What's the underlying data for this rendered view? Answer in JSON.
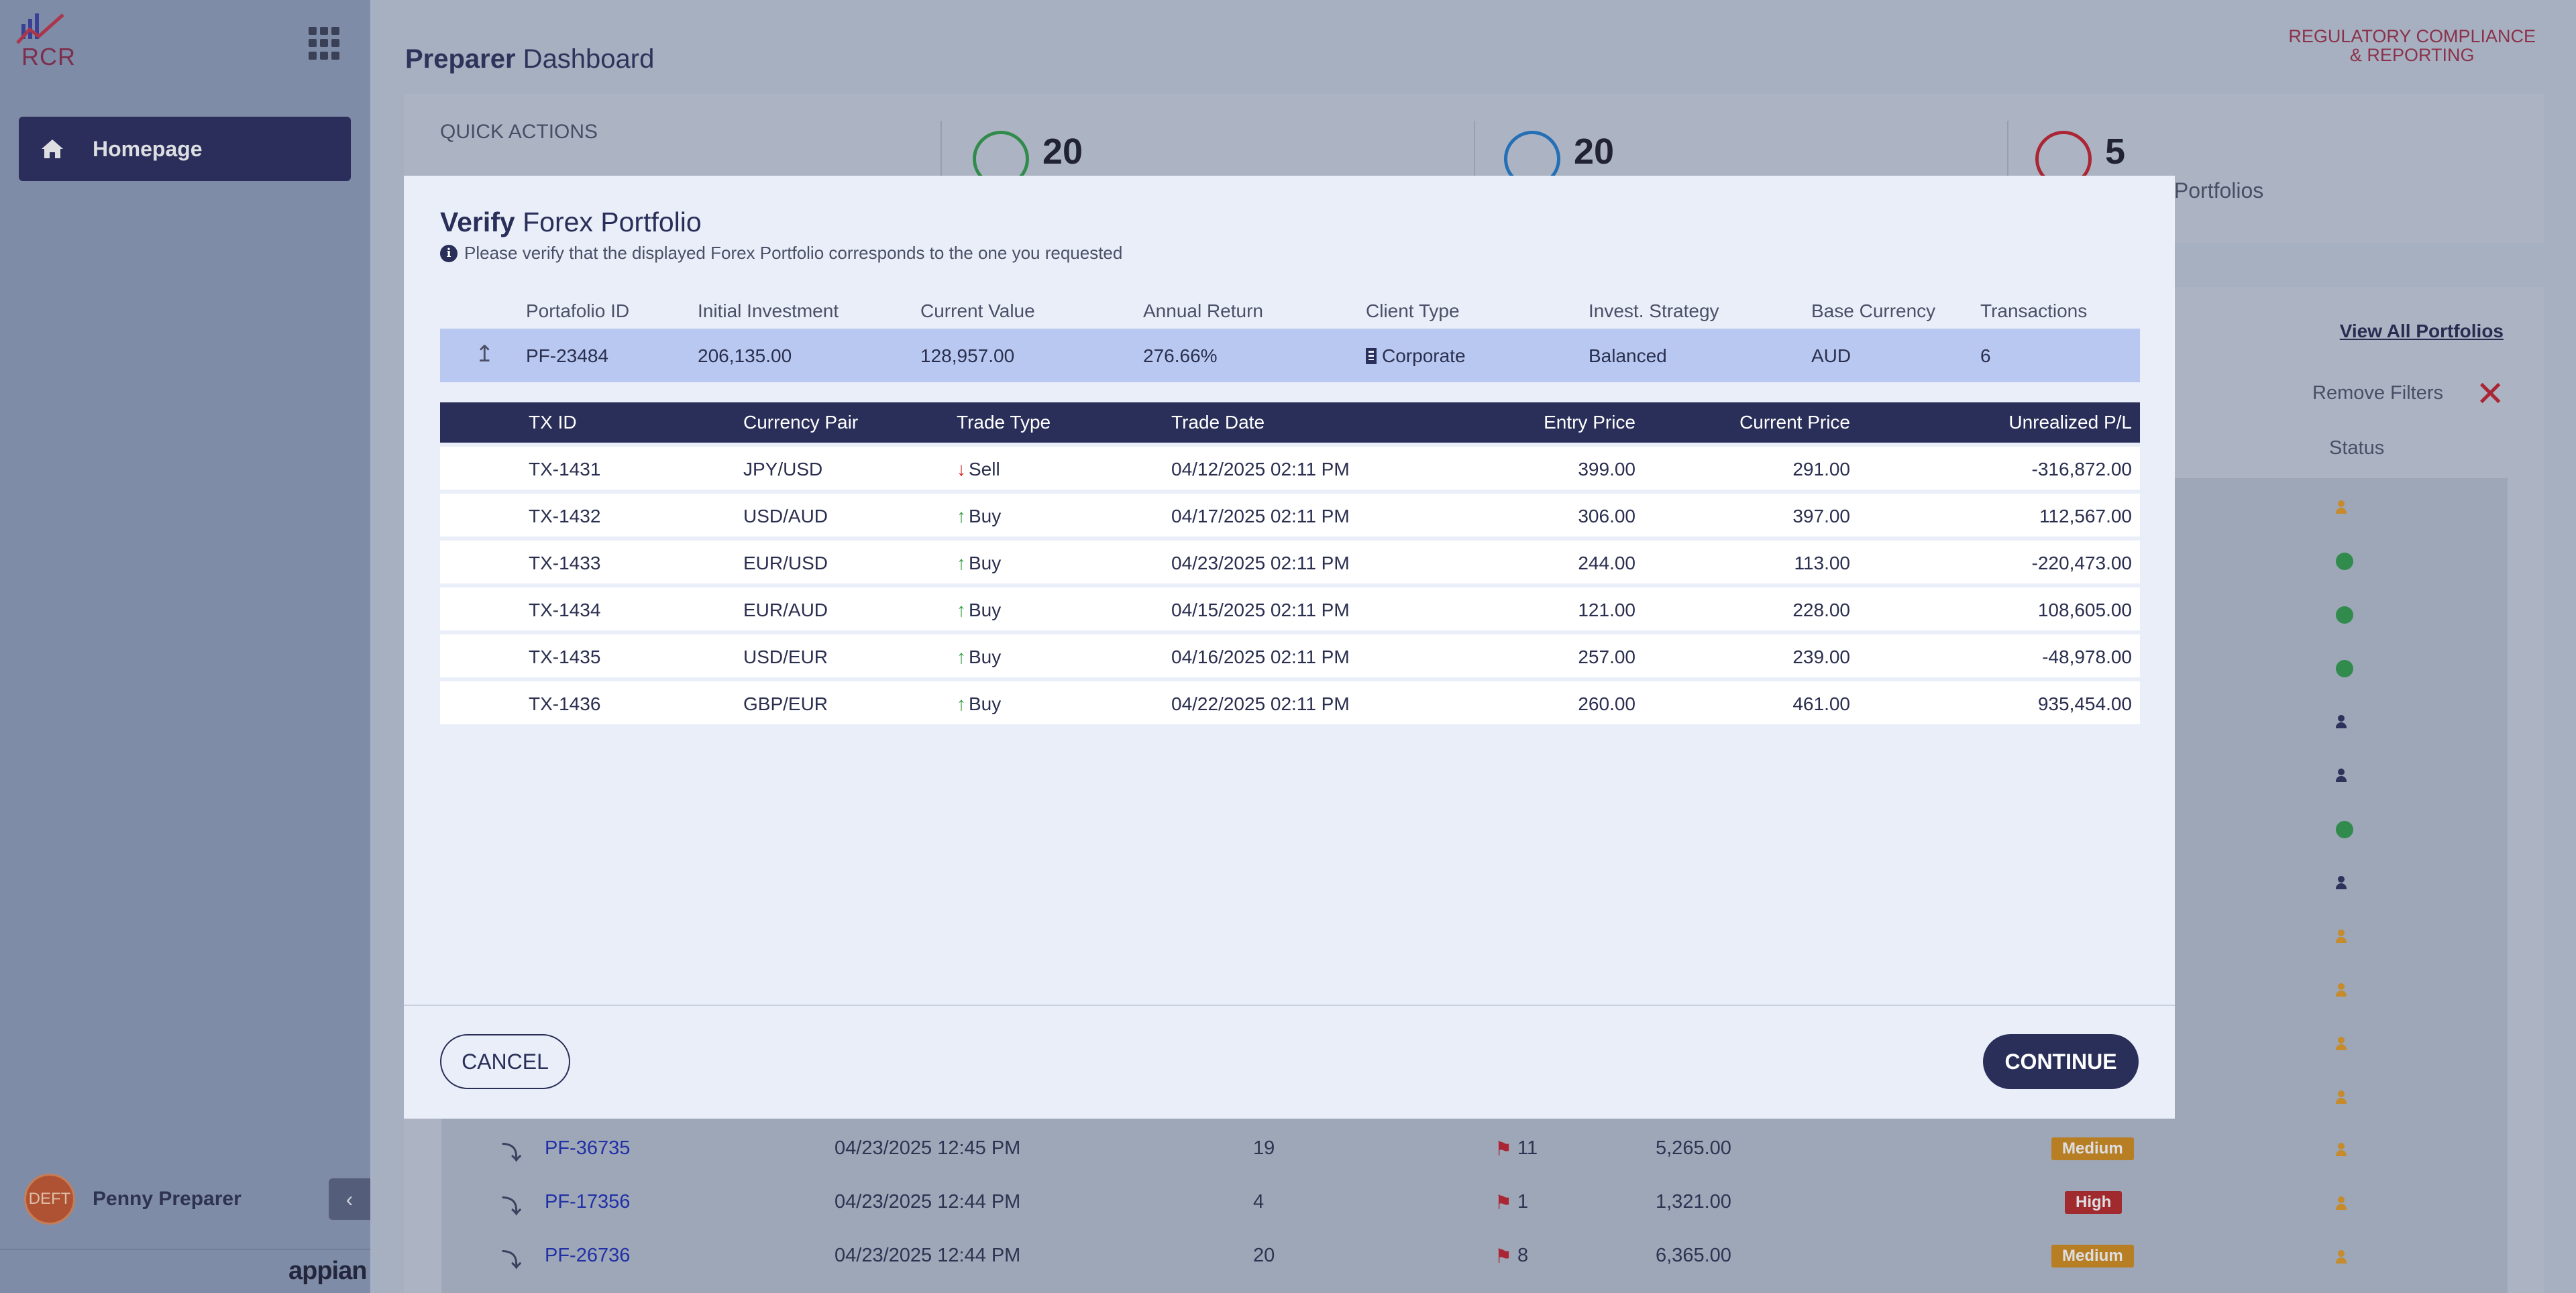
{
  "sidebar": {
    "logo_text": "RCR",
    "nav": [
      {
        "label": "Homepage"
      }
    ],
    "user": {
      "name": "Penny Preparer",
      "avatar_text": "DEFT"
    },
    "footer_brand": "appian"
  },
  "header": {
    "title_bold": "Preparer",
    "title_rest": " Dashboard",
    "brand_line1": "REGULATORY COMPLIANCE",
    "brand_line2": "& REPORTING"
  },
  "kpis": {
    "quick_actions_label": "QUICK ACTIONS",
    "items": [
      {
        "value": "20",
        "label": "",
        "color": "#2f9a49"
      },
      {
        "value": "20",
        "label": "",
        "color": "#1f78c8"
      },
      {
        "value": "5",
        "label": "sk Portfolios",
        "color": "#c21f2d"
      }
    ]
  },
  "list": {
    "view_all_label": "View All Portfolios",
    "remove_filters_label": "Remove Filters",
    "status_header": "Status",
    "visible_rows": [
      {
        "id": "PF-36735",
        "date": "04/23/2025 12:45 PM",
        "count": "19",
        "flags": "11",
        "amount": "5,265.00",
        "risk": "Medium"
      },
      {
        "id": "PF-17356",
        "date": "04/23/2025 12:44 PM",
        "count": "4",
        "flags": "1",
        "amount": "1,321.00",
        "risk": "High"
      },
      {
        "id": "PF-26736",
        "date": "04/23/2025 12:44 PM",
        "count": "20",
        "flags": "8",
        "amount": "6,365.00",
        "risk": "Medium"
      }
    ]
  },
  "modal": {
    "title_bold": "Verify",
    "title_rest": " Forex Portfolio",
    "hint": "Please verify that the displayed Forex Portfolio corresponds to the one you requested",
    "portfolio_headers": [
      "Portafolio ID",
      "Initial Investment",
      "Current Value",
      "Annual Return",
      "Client Type",
      "Invest. Strategy",
      "Base Currency",
      "Transactions"
    ],
    "portfolio": {
      "id": "PF-23484",
      "initial_investment": "206,135.00",
      "current_value": "128,957.00",
      "annual_return": "276.66%",
      "client_type": "Corporate",
      "strategy": "Balanced",
      "base_currency": "AUD",
      "transactions": "6"
    },
    "tx_headers": [
      "TX ID",
      "Currency Pair",
      "Trade Type",
      "Trade Date",
      "Entry Price",
      "Current Price",
      "Unrealized P/L"
    ],
    "transactions": [
      {
        "id": "TX-1431",
        "pair": "JPY/USD",
        "type": "Sell",
        "date": "04/12/2025 02:11 PM",
        "entry": "399.00",
        "current": "291.00",
        "pl": "-316,872.00"
      },
      {
        "id": "TX-1432",
        "pair": "USD/AUD",
        "type": "Buy",
        "date": "04/17/2025 02:11 PM",
        "entry": "306.00",
        "current": "397.00",
        "pl": "112,567.00"
      },
      {
        "id": "TX-1433",
        "pair": "EUR/USD",
        "type": "Buy",
        "date": "04/23/2025 02:11 PM",
        "entry": "244.00",
        "current": "113.00",
        "pl": "-220,473.00"
      },
      {
        "id": "TX-1434",
        "pair": "EUR/AUD",
        "type": "Buy",
        "date": "04/15/2025 02:11 PM",
        "entry": "121.00",
        "current": "228.00",
        "pl": "108,605.00"
      },
      {
        "id": "TX-1435",
        "pair": "USD/EUR",
        "type": "Buy",
        "date": "04/16/2025 02:11 PM",
        "entry": "257.00",
        "current": "239.00",
        "pl": "-48,978.00"
      },
      {
        "id": "TX-1436",
        "pair": "GBP/EUR",
        "type": "Buy",
        "date": "04/22/2025 02:11 PM",
        "entry": "260.00",
        "current": "461.00",
        "pl": "935,454.00"
      }
    ],
    "cancel_label": "CANCEL",
    "continue_label": "CONTINUE"
  },
  "colors": {
    "primary": "#2a2f5a",
    "highlight_row": "#b9c8f0",
    "buy_arrow": "#2e9b3f",
    "sell_arrow": "#d42424"
  }
}
